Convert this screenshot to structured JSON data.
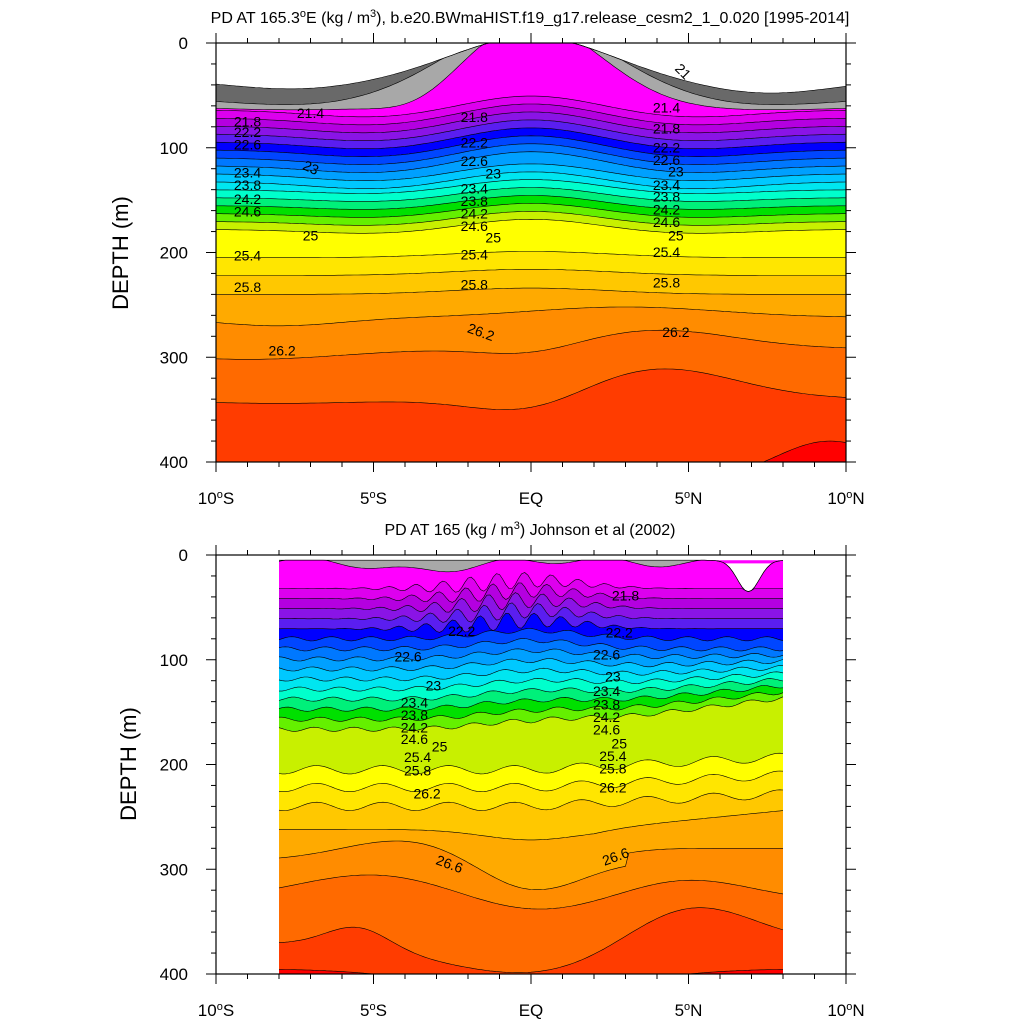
{
  "chart_data": [
    {
      "type": "contour",
      "title": "PD AT 165.3°E (kg / m³), b.e20.BWmaHIST.f19_g17.release_cesm2_1_0.020 [1995-2014]",
      "ylabel": "DEPTH (m)",
      "xlim": [
        -10,
        10
      ],
      "ylim": [
        400,
        0
      ],
      "x_ticks": [
        {
          "value": -10,
          "label": "10°S"
        },
        {
          "value": -5,
          "label": "5°S"
        },
        {
          "value": 0,
          "label": "EQ"
        },
        {
          "value": 5,
          "label": "5°N"
        },
        {
          "value": 10,
          "label": "10°N"
        }
      ],
      "y_ticks": [
        {
          "value": 0,
          "label": "0"
        },
        {
          "value": 100,
          "label": "100"
        },
        {
          "value": 200,
          "label": "200"
        },
        {
          "value": 300,
          "label": "300"
        },
        {
          "value": 400,
          "label": "400"
        }
      ],
      "contour_labels": [
        {
          "text": "21",
          "x": 4.8,
          "y": 28,
          "rot": 45
        },
        {
          "text": "21.4",
          "x": -7.0,
          "y": 68
        },
        {
          "text": "21.4",
          "x": 4.3,
          "y": 63
        },
        {
          "text": "21.8",
          "x": -9.0,
          "y": 76
        },
        {
          "text": "21.8",
          "x": -1.8,
          "y": 72
        },
        {
          "text": "21.8",
          "x": 4.3,
          "y": 83
        },
        {
          "text": "22.2",
          "x": -9.0,
          "y": 86
        },
        {
          "text": "22.2",
          "x": -1.8,
          "y": 96
        },
        {
          "text": "22.2",
          "x": 4.3,
          "y": 101
        },
        {
          "text": "22.6",
          "x": -9.0,
          "y": 98
        },
        {
          "text": "22.6",
          "x": -1.8,
          "y": 114
        },
        {
          "text": "22.6",
          "x": 4.3,
          "y": 113
        },
        {
          "text": "23",
          "x": -7.0,
          "y": 120,
          "rot": 25
        },
        {
          "text": "23",
          "x": -1.2,
          "y": 126
        },
        {
          "text": "23",
          "x": 4.6,
          "y": 124
        },
        {
          "text": "23.4",
          "x": -9.0,
          "y": 125
        },
        {
          "text": "23.4",
          "x": -1.8,
          "y": 140
        },
        {
          "text": "23.4",
          "x": 4.3,
          "y": 137
        },
        {
          "text": "23.8",
          "x": -9.0,
          "y": 137
        },
        {
          "text": "23.8",
          "x": -1.8,
          "y": 152
        },
        {
          "text": "23.8",
          "x": 4.3,
          "y": 148
        },
        {
          "text": "24.2",
          "x": -9.0,
          "y": 150
        },
        {
          "text": "24.2",
          "x": -1.8,
          "y": 164
        },
        {
          "text": "24.2",
          "x": 4.3,
          "y": 160
        },
        {
          "text": "24.6",
          "x": -9.0,
          "y": 162
        },
        {
          "text": "24.6",
          "x": -1.8,
          "y": 176
        },
        {
          "text": "24.6",
          "x": 4.3,
          "y": 172
        },
        {
          "text": "25",
          "x": -7.0,
          "y": 185
        },
        {
          "text": "25",
          "x": -1.2,
          "y": 187
        },
        {
          "text": "25",
          "x": 4.6,
          "y": 185
        },
        {
          "text": "25.4",
          "x": -9.0,
          "y": 204
        },
        {
          "text": "25.4",
          "x": -1.8,
          "y": 203
        },
        {
          "text": "25.4",
          "x": 4.3,
          "y": 201
        },
        {
          "text": "25.8",
          "x": -9.0,
          "y": 234
        },
        {
          "text": "25.8",
          "x": -1.8,
          "y": 232
        },
        {
          "text": "25.8",
          "x": 4.3,
          "y": 230
        },
        {
          "text": "26.2",
          "x": -1.6,
          "y": 277,
          "rot": 20
        },
        {
          "text": "26.2",
          "x": 4.6,
          "y": 277
        },
        {
          "text": "26.2",
          "x": -7.9,
          "y": 295
        }
      ]
    },
    {
      "type": "contour",
      "title": "PD AT 165 (kg / m³) Johnson et al (2002)",
      "ylabel": "DEPTH (m)",
      "xlim": [
        -10,
        10
      ],
      "ylim": [
        400,
        0
      ],
      "data_x_extent": [
        -8,
        8
      ],
      "x_ticks": [
        {
          "value": -10,
          "label": "10°S"
        },
        {
          "value": -5,
          "label": "5°S"
        },
        {
          "value": 0,
          "label": "EQ"
        },
        {
          "value": 5,
          "label": "5°N"
        },
        {
          "value": 10,
          "label": "10°N"
        }
      ],
      "y_ticks": [
        {
          "value": 0,
          "label": "0"
        },
        {
          "value": 100,
          "label": "100"
        },
        {
          "value": 200,
          "label": "200"
        },
        {
          "value": 300,
          "label": "300"
        },
        {
          "value": 400,
          "label": "400"
        }
      ],
      "contour_labels": [
        {
          "text": "21.8",
          "x": 3.0,
          "y": 40
        },
        {
          "text": "22.2",
          "x": -2.2,
          "y": 74
        },
        {
          "text": "22.2",
          "x": 2.8,
          "y": 75
        },
        {
          "text": "22.6",
          "x": -3.9,
          "y": 98
        },
        {
          "text": "22.6",
          "x": 2.4,
          "y": 96
        },
        {
          "text": "23",
          "x": -3.1,
          "y": 126
        },
        {
          "text": "23",
          "x": 2.6,
          "y": 117
        },
        {
          "text": "23.4",
          "x": -3.7,
          "y": 142
        },
        {
          "text": "23.4",
          "x": 2.4,
          "y": 131
        },
        {
          "text": "23.8",
          "x": -3.7,
          "y": 154
        },
        {
          "text": "23.8",
          "x": 2.4,
          "y": 144
        },
        {
          "text": "24.2",
          "x": -3.7,
          "y": 166
        },
        {
          "text": "24.2",
          "x": 2.4,
          "y": 156
        },
        {
          "text": "24.6",
          "x": -3.7,
          "y": 177
        },
        {
          "text": "24.6",
          "x": 2.4,
          "y": 168
        },
        {
          "text": "25",
          "x": -2.9,
          "y": 184
        },
        {
          "text": "25",
          "x": 2.8,
          "y": 181
        },
        {
          "text": "25.4",
          "x": -3.6,
          "y": 194
        },
        {
          "text": "25.4",
          "x": 2.6,
          "y": 193
        },
        {
          "text": "25.8",
          "x": -3.6,
          "y": 207
        },
        {
          "text": "25.8",
          "x": 2.6,
          "y": 205
        },
        {
          "text": "26.2",
          "x": -3.3,
          "y": 229
        },
        {
          "text": "26.2",
          "x": 2.6,
          "y": 223
        },
        {
          "text": "26.6",
          "x": -2.6,
          "y": 296,
          "rot": 20
        },
        {
          "text": "26.6",
          "x": 2.7,
          "y": 289,
          "rot": -20
        }
      ]
    }
  ],
  "colors": {
    "fills": [
      "#696969",
      "#a8a8a8",
      "#ff00ff",
      "#dd00ee",
      "#b400e0",
      "#8a14e6",
      "#5a1ef0",
      "#0000ff",
      "#0046ff",
      "#0078ff",
      "#00a0ff",
      "#00c8ff",
      "#00e6f0",
      "#00ffcc",
      "#00f07a",
      "#00e000",
      "#64f000",
      "#c8f000",
      "#ffff00",
      "#ffe600",
      "#ffc800",
      "#ffaa00",
      "#ff8c00",
      "#ff6a00",
      "#ff3c00",
      "#ff0000",
      "#e60000",
      "#cc0000",
      "#b80000"
    ]
  }
}
